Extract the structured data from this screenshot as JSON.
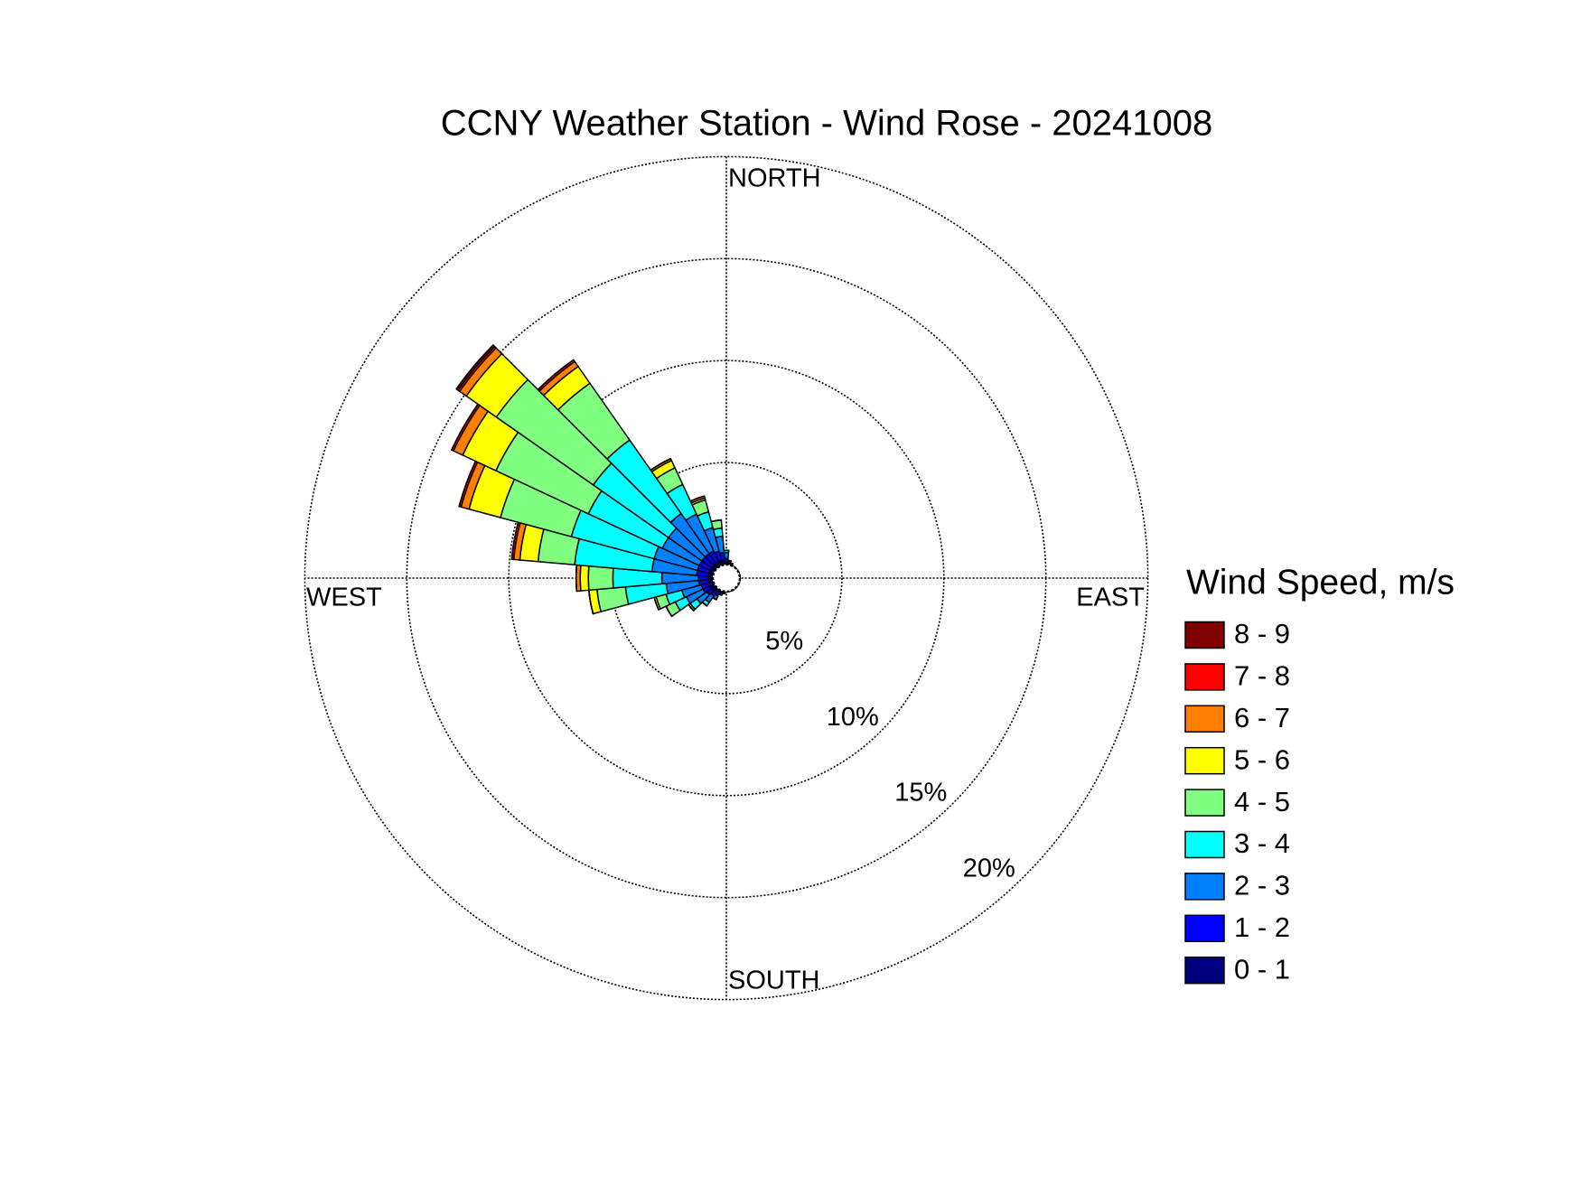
{
  "chart_data": {
    "type": "windrose",
    "title": "CCNY Weather Station - Wind Rose - 20241008",
    "compass_labels": [
      "NORTH",
      "EAST",
      "SOUTH",
      "WEST"
    ],
    "legend_title": "Wind Speed, m/s",
    "theta": [
      0,
      10,
      20,
      30,
      40,
      50,
      60,
      70,
      80,
      90,
      100,
      110,
      120,
      130,
      140,
      150,
      160,
      170,
      180,
      190,
      200,
      210,
      220,
      230,
      240,
      250,
      260,
      270,
      280,
      290,
      300,
      310,
      320,
      330,
      340,
      350
    ],
    "rlim": [
      0,
      20
    ],
    "rticks": [
      {
        "value": 5,
        "label": "5%"
      },
      {
        "value": 10,
        "label": "10%"
      },
      {
        "value": 15,
        "label": "15%"
      },
      {
        "value": 20,
        "label": "20%"
      }
    ],
    "grid": true,
    "series": [
      {
        "name": "0 - 1",
        "color": "#000080",
        "values": [
          0.1,
          0.1,
          0.1,
          0,
          0,
          0,
          0,
          0,
          0,
          0,
          0,
          0,
          0,
          0,
          0,
          0,
          0,
          0,
          0,
          0.1,
          0.1,
          0.1,
          0.1,
          0.2,
          0.2,
          0.2,
          0.2,
          0.2,
          0.2,
          0.2,
          0.2,
          0.2,
          0.2,
          0.2,
          0.2,
          0.2
        ]
      },
      {
        "name": "1 - 2",
        "color": "#0000ff",
        "values": [
          0.2,
          0.1,
          0,
          0,
          0,
          0,
          0,
          0,
          0,
          0,
          0,
          0,
          0,
          0,
          0,
          0,
          0,
          0,
          0,
          0,
          0.1,
          0.2,
          0.3,
          0.3,
          0.4,
          0.4,
          0.5,
          0.5,
          0.6,
          0.6,
          0.6,
          0.6,
          0.6,
          0.6,
          0.5,
          0.4
        ]
      },
      {
        "name": "2 - 3",
        "color": "#0080ff",
        "values": [
          0.3,
          0,
          0,
          0,
          0,
          0,
          0,
          0,
          0,
          0,
          0,
          0,
          0,
          0,
          0,
          0,
          0,
          0,
          0,
          0,
          0,
          0.2,
          0.4,
          0.6,
          0.9,
          1.0,
          1.6,
          1.8,
          2.2,
          2.2,
          2.0,
          2.0,
          2.4,
          2.0,
          1.2,
          0.8
        ]
      },
      {
        "name": "3 - 4",
        "color": "#00ffff",
        "values": [
          0.1,
          0,
          0,
          0,
          0,
          0,
          0,
          0,
          0,
          0,
          0,
          0,
          0,
          0,
          0,
          0,
          0,
          0,
          0,
          0,
          0,
          0,
          0.2,
          0.4,
          0.6,
          0.8,
          2.0,
          2.4,
          3.8,
          4.2,
          4.0,
          4.5,
          4.4,
          1.6,
          0.8,
          0.4
        ]
      },
      {
        "name": "4 - 5",
        "color": "#80ff80",
        "values": [
          0,
          0,
          0,
          0,
          0,
          0,
          0,
          0,
          0,
          0,
          0,
          0,
          0,
          0,
          0,
          0,
          0,
          0,
          0,
          0,
          0,
          0,
          0,
          0.1,
          0.5,
          0.5,
          1.4,
          1.2,
          1.8,
          3.6,
          5.0,
          5.8,
          3.4,
          0.9,
          0.6,
          0.4
        ]
      },
      {
        "name": "5 - 6",
        "color": "#ffff00",
        "values": [
          0,
          0,
          0,
          0,
          0,
          0,
          0,
          0,
          0,
          0,
          0,
          0,
          0,
          0,
          0,
          0,
          0,
          0,
          0,
          0,
          0,
          0,
          0,
          0,
          0,
          0.1,
          0.4,
          0.4,
          0.9,
          1.6,
          1.8,
          1.8,
          1.0,
          0.4,
          0.1,
          0
        ]
      },
      {
        "name": "6 - 7",
        "color": "#ff8000",
        "values": [
          0,
          0,
          0,
          0,
          0,
          0,
          0,
          0,
          0,
          0,
          0,
          0,
          0,
          0,
          0,
          0,
          0,
          0,
          0,
          0,
          0,
          0,
          0,
          0,
          0,
          0,
          0,
          0.2,
          0.3,
          0.4,
          0.5,
          0.4,
          0.3,
          0.1,
          0.1,
          0
        ]
      },
      {
        "name": "7 - 8",
        "color": "#ff0000",
        "values": [
          0,
          0,
          0,
          0,
          0,
          0,
          0,
          0,
          0,
          0,
          0,
          0,
          0,
          0,
          0,
          0,
          0,
          0,
          0,
          0,
          0,
          0,
          0,
          0,
          0,
          0,
          0,
          0,
          0.1,
          0.1,
          0.1,
          0.1,
          0.1,
          0,
          0,
          0
        ]
      },
      {
        "name": "8 - 9",
        "color": "#800000",
        "values": [
          0,
          0,
          0,
          0,
          0,
          0,
          0,
          0,
          0,
          0,
          0,
          0,
          0,
          0,
          0,
          0,
          0,
          0,
          0,
          0,
          0,
          0,
          0,
          0,
          0,
          0,
          0,
          0,
          0,
          0,
          0,
          0.1,
          0,
          0,
          0,
          0
        ]
      }
    ]
  }
}
